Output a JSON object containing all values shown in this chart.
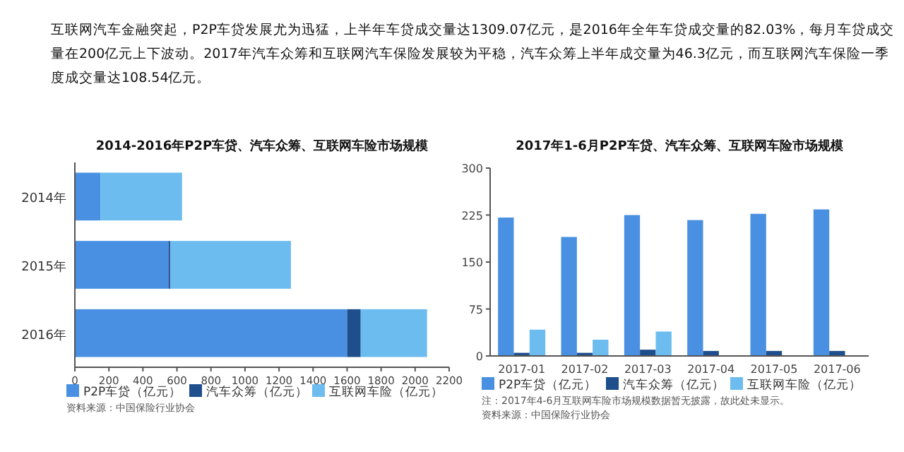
{
  "chart_data": [
    {
      "type": "bar",
      "title": "2014-2016年P2P车贷、汽车众筹、互联网车险市场规模",
      "orientation": "horizontal",
      "stacked": true,
      "categories": [
        "2014年",
        "2015年",
        "2016年"
      ],
      "series": [
        {
          "name": "P2P车贷（亿元）",
          "color": "#4a90e2",
          "values": [
            150,
            550,
            1600
          ]
        },
        {
          "name": "汽车众筹（亿元）",
          "color": "#1f4e8c",
          "values": [
            0,
            10,
            80
          ]
        },
        {
          "name": "互联网车险（亿元）",
          "color": "#6dbcf0",
          "values": [
            480,
            710,
            390
          ]
        }
      ],
      "xlim": [
        0,
        2200
      ],
      "xticks": [
        0,
        200,
        400,
        600,
        800,
        1000,
        1200,
        1400,
        1600,
        1800,
        2000,
        2200
      ],
      "grid": false,
      "legend": "bottom",
      "annotations": [
        "互联网汽车金融突起，P2P车贷发展尤为迅猛，上半年车贷成交量达1309.07亿元，是2016年全年车贷成交量的82.03%，每月车贷成交量在200亿元上下波动。2017年汽车众筹和互联网汽车保险发展较为平稳，汽车众筹上半年成交量为46.3亿元，而互联网汽车保险一季度成交量达108.54亿元。",
        "资料来源：中国保险行业协会"
      ]
    },
    {
      "type": "bar",
      "title": "2017年1-6月P2P车贷、汽车众筹、互联网车险市场规模",
      "categories": [
        "2017-01",
        "2017-02",
        "2017-03",
        "2017-04",
        "2017-05",
        "2017-06"
      ],
      "series": [
        {
          "name": "P2P车贷（亿元）",
          "color": "#4a90e2",
          "values": [
            221,
            190,
            225,
            217,
            227,
            234
          ]
        },
        {
          "name": "汽车众筹（亿元）",
          "color": "#1f4e8c",
          "values": [
            5,
            5,
            10,
            8,
            8,
            8
          ]
        },
        {
          "name": "互联网车险（亿元）",
          "color": "#6dbcf0",
          "values": [
            42,
            26,
            39,
            null,
            null,
            null
          ]
        }
      ],
      "ylim": [
        0,
        300
      ],
      "yticks": [
        0,
        75,
        150,
        225,
        300
      ],
      "grid": false,
      "legend": "bottom",
      "annotations": [
        "注：2017年4-6月互联网车险市场规模数据暂无披露，故此处未显示。",
        "资料来源：中国保险行业协会"
      ]
    }
  ]
}
